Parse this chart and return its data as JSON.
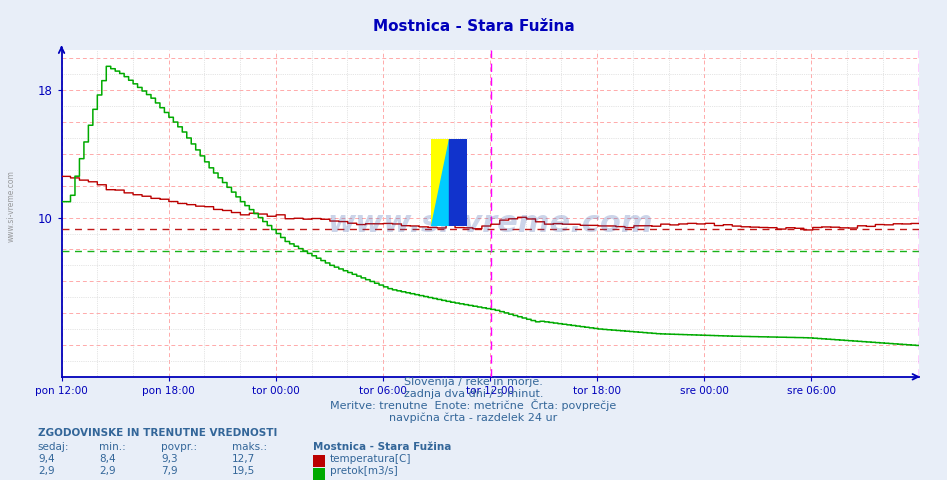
{
  "title": "Mostnica - Stara Fužina",
  "title_color": "#0000bb",
  "bg_color": "#e8eef8",
  "plot_bg_color": "#ffffff",
  "axis_color": "#0000bb",
  "temp_color": "#bb0000",
  "flow_color": "#00aa00",
  "avg_temp": 9.3,
  "avg_flow": 7.9,
  "ymin": 0,
  "ymax": 20.5,
  "ytick_labeled": [
    10,
    18
  ],
  "n_points": 576,
  "xtick_labels": [
    "pon 12:00",
    "pon 18:00",
    "tor 00:00",
    "tor 06:00",
    "tor 12:00",
    "tor 18:00",
    "sre 00:00",
    "sre 06:00"
  ],
  "subtitle1": "Slovenija / reke in morje.",
  "subtitle2": "zadnja dva dni / 5 minut.",
  "subtitle3": "Meritve: trenutne  Enote: metrične  Črta: povprečje",
  "subtitle4": "navpična črta - razdelek 24 ur",
  "text_color": "#336699",
  "watermark": "www.si-vreme.com",
  "label_temp": "temperatura[C]",
  "label_flow": "pretok[m3/s]",
  "station_name": "Mostnica - Stara Fužina",
  "table_header": "ZGODOVINSKE IN TRENUTNE VREDNOSTI",
  "col_sedaj": "sedaj:",
  "col_min": "min.:",
  "col_povpr": "povpr.:",
  "col_maks": "maks.:",
  "temp_sedaj": "9,4",
  "temp_min": "8,4",
  "temp_povpr": "9,3",
  "temp_maks": "12,7",
  "flow_sedaj": "2,9",
  "flow_min": "2,9",
  "flow_povpr": "7,9",
  "flow_maks": "19,5"
}
